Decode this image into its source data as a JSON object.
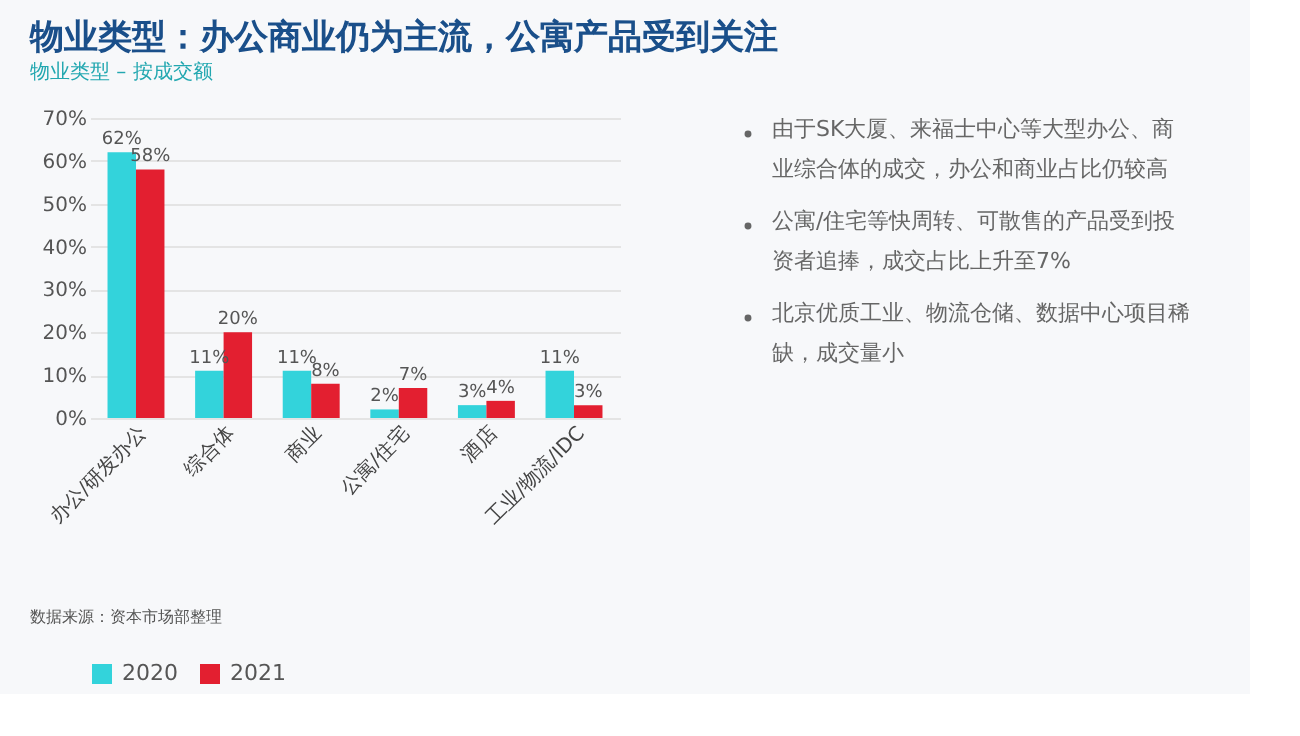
{
  "chart_data": {
    "type": "bar",
    "title": "物业类型：办公商业仍为主流，公寓产品受到关注",
    "subtitle": "物业类型 – 按成交额",
    "categories": [
      "办公/研发办公",
      "综合体",
      "商业",
      "公寓/住宅",
      "酒店",
      "工业/物流/IDC"
    ],
    "series": [
      {
        "name": "2020",
        "color": "#33d3db",
        "values": [
          62,
          11,
          11,
          2,
          3,
          11
        ]
      },
      {
        "name": "2021",
        "color": "#e31f30",
        "values": [
          58,
          20,
          8,
          7,
          4,
          3
        ]
      }
    ],
    "ylim": [
      0,
      70
    ],
    "yticks": [
      {
        "value": 0,
        "label": "0%"
      },
      {
        "value": 10,
        "label": "10%"
      },
      {
        "value": 20,
        "label": "20%"
      },
      {
        "value": 30,
        "label": "30%"
      },
      {
        "value": 40,
        "label": "40%"
      },
      {
        "value": 50,
        "label": "50%"
      },
      {
        "value": 60,
        "label": "60%"
      },
      {
        "value": 70,
        "label": "70%"
      }
    ],
    "grid": "y",
    "legend": "bottom",
    "value_labels": [
      [
        "62%",
        "11%",
        "11%",
        "2%",
        "3%",
        "11%"
      ],
      [
        "58%",
        "20%",
        "8%",
        "7%",
        "4%",
        "3%"
      ]
    ],
    "annotations": [
      "由于SK大厦、来福士中心等大型办公、商业综合体的成交，办公和商业占比仍较高",
      "公寓/住宅等快周转、可散售的产品受到投资者追捧，成交占比上升至7%",
      "北京优质工业、物流仓储、数据中心项目稀缺，成交量小",
      "数据来源：资本市场部整理"
    ]
  }
}
